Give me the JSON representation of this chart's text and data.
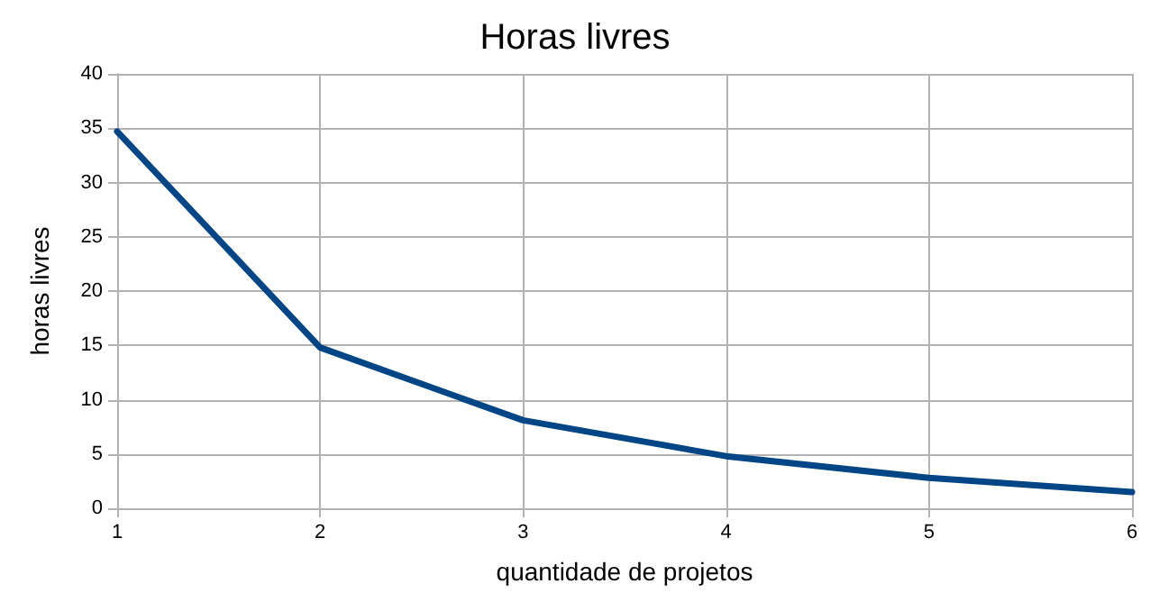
{
  "chart_data": {
    "type": "line",
    "title": "Horas livres",
    "xlabel": "quantidade de projetos",
    "ylabel": "horas livres",
    "x": [
      1,
      2,
      3,
      4,
      5,
      6
    ],
    "series": [
      {
        "color": "#004586",
        "values": [
          34.7,
          14.8,
          8.1,
          4.8,
          2.8,
          1.5
        ]
      }
    ],
    "xlim": [
      1,
      6
    ],
    "xticks": [
      1,
      2,
      3,
      4,
      5,
      6
    ],
    "ylim": [
      0,
      40
    ],
    "yticks": [
      0,
      5,
      10,
      15,
      20,
      25,
      30,
      35,
      40
    ],
    "grid": true,
    "marker": "none",
    "line_style": "solid"
  }
}
